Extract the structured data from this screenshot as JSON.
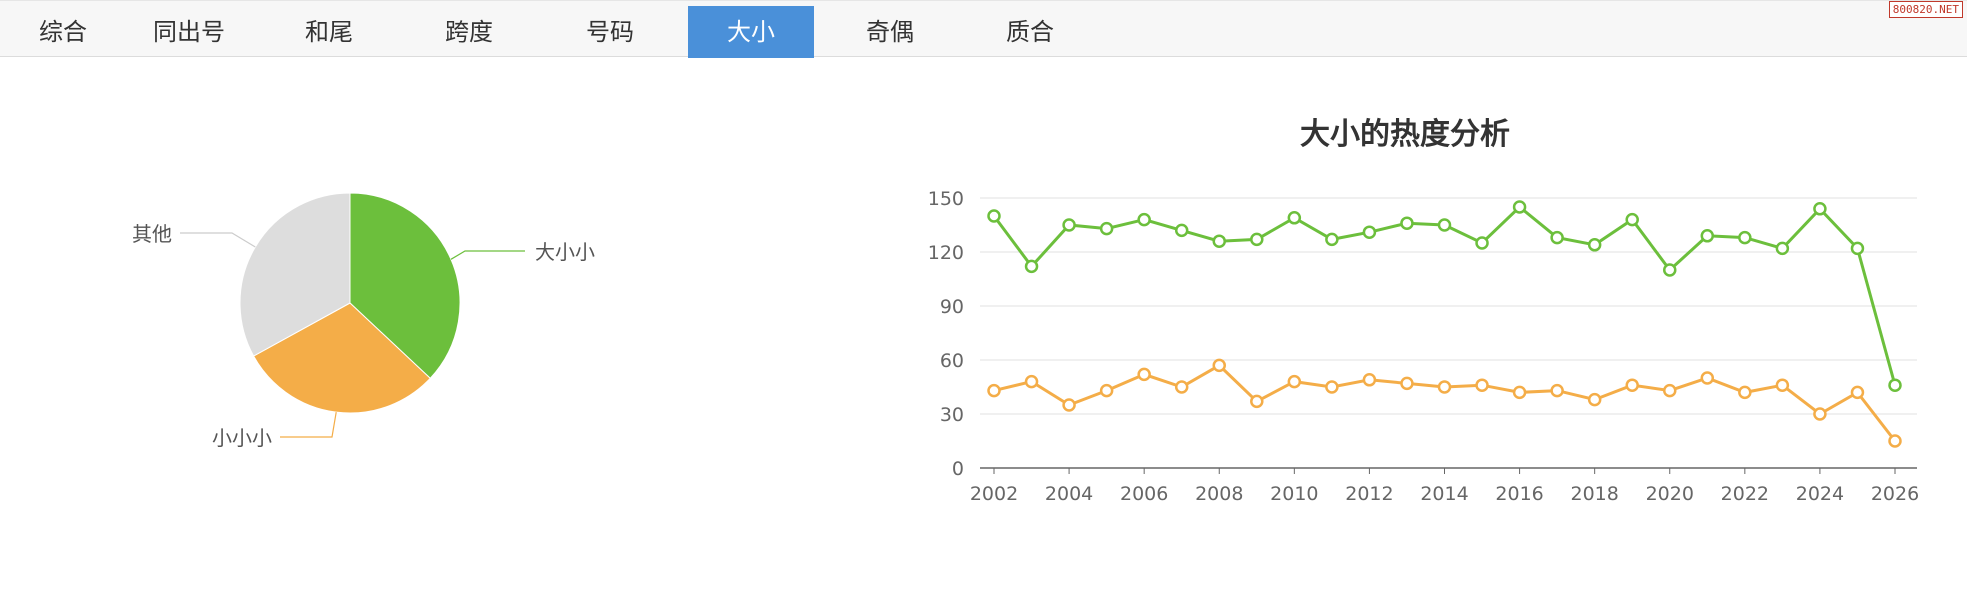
{
  "tabs": [
    {
      "label": "综合",
      "active": false
    },
    {
      "label": "同出号",
      "active": false
    },
    {
      "label": "和尾",
      "active": false
    },
    {
      "label": "跨度",
      "active": false
    },
    {
      "label": "号码",
      "active": false
    },
    {
      "label": "大小",
      "active": true
    },
    {
      "label": "奇偶",
      "active": false
    },
    {
      "label": "质合",
      "active": false
    }
  ],
  "watermark": "800820.NET",
  "colors": {
    "green": "#6cbf3c",
    "orange": "#f4ad48",
    "gray": "#dddddd",
    "active_tab": "#4a90d9"
  },
  "chart_data": [
    {
      "type": "pie",
      "slices": [
        {
          "label": "大小小",
          "value": 37,
          "color": "#6cbf3c"
        },
        {
          "label": "小小小",
          "value": 30,
          "color": "#f4ad48"
        },
        {
          "label": "其他",
          "value": 33,
          "color": "#dddddd"
        }
      ]
    },
    {
      "type": "line",
      "title": "大小的热度分析",
      "x": [
        2002,
        2003,
        2004,
        2005,
        2006,
        2007,
        2008,
        2009,
        2010,
        2011,
        2012,
        2013,
        2014,
        2015,
        2016,
        2017,
        2018,
        2019,
        2020,
        2021,
        2022,
        2023,
        2024,
        2025,
        2026
      ],
      "xticks": [
        "2002",
        "2004",
        "2006",
        "2008",
        "2010",
        "2012",
        "2014",
        "2016",
        "2018",
        "2020",
        "2022",
        "2024",
        "2026"
      ],
      "ylim": [
        0,
        150
      ],
      "yticks": [
        "0",
        "30",
        "60",
        "90",
        "120",
        "150"
      ],
      "grid": true,
      "series": [
        {
          "color": "#6cbf3c",
          "values": [
            140,
            112,
            135,
            133,
            138,
            132,
            126,
            127,
            139,
            127,
            131,
            136,
            135,
            125,
            145,
            128,
            124,
            138,
            110,
            129,
            128,
            122,
            144,
            122,
            46
          ]
        },
        {
          "color": "#f4ad48",
          "values": [
            43,
            48,
            35,
            43,
            52,
            45,
            57,
            37,
            48,
            45,
            49,
            47,
            45,
            46,
            42,
            43,
            38,
            46,
            43,
            50,
            42,
            46,
            30,
            42,
            15
          ]
        }
      ]
    }
  ]
}
